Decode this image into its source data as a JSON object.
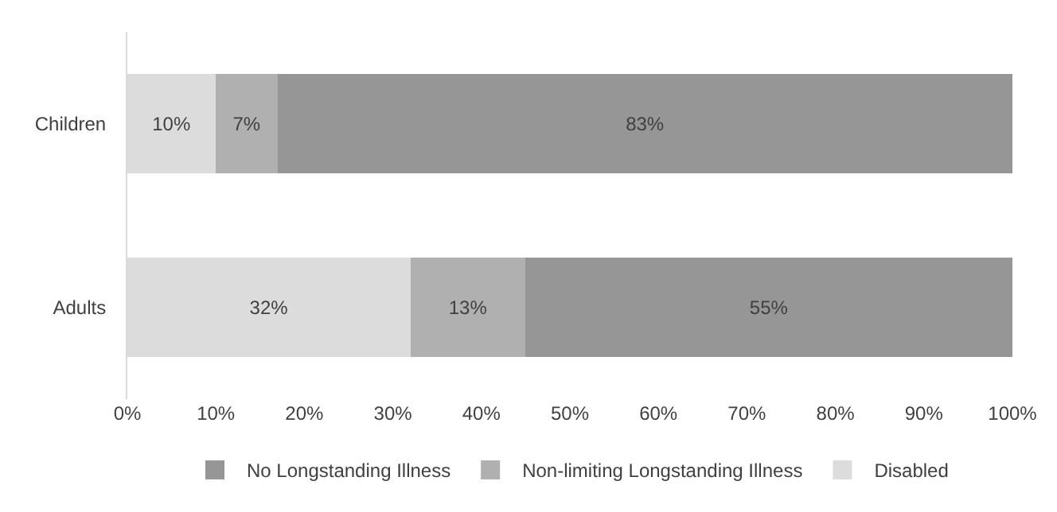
{
  "chart_data": {
    "type": "bar",
    "orientation": "horizontal",
    "stacked": true,
    "categories": [
      "Children",
      "Adults"
    ],
    "series": [
      {
        "name": "Disabled",
        "color": "#dcdcdc",
        "values": [
          10,
          32
        ],
        "value_labels": [
          "10%",
          "32%"
        ]
      },
      {
        "name": "Non-limiting Longstanding Illness",
        "color": "#b0b0b0",
        "values": [
          7,
          13
        ],
        "value_labels": [
          "7%",
          "13%"
        ]
      },
      {
        "name": "No Longstanding Illness",
        "color": "#969696",
        "values": [
          83,
          55
        ],
        "value_labels": [
          "83%",
          "55%"
        ]
      }
    ],
    "xlim": [
      0,
      100
    ],
    "xticks": [
      {
        "value": 0,
        "label": "0%"
      },
      {
        "value": 10,
        "label": "10%"
      },
      {
        "value": 20,
        "label": "20%"
      },
      {
        "value": 30,
        "label": "30%"
      },
      {
        "value": 40,
        "label": "40%"
      },
      {
        "value": 50,
        "label": "50%"
      },
      {
        "value": 60,
        "label": "60%"
      },
      {
        "value": 70,
        "label": "70%"
      },
      {
        "value": 80,
        "label": "80%"
      },
      {
        "value": 90,
        "label": "90%"
      },
      {
        "value": 100,
        "label": "100%"
      }
    ],
    "grid": false,
    "legend": "bottom"
  }
}
